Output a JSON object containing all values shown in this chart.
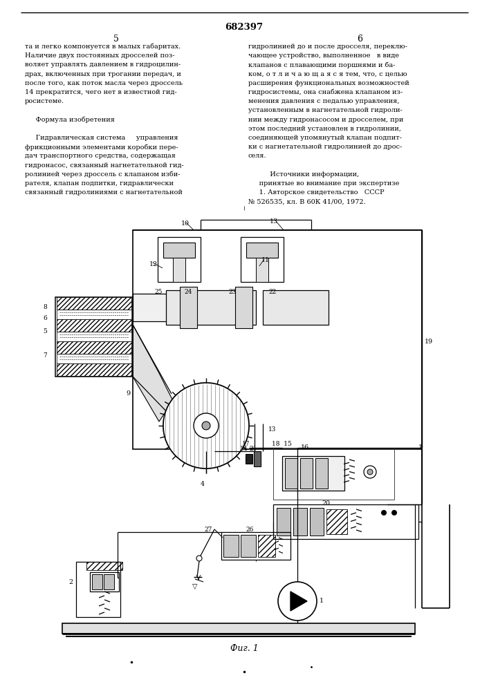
{
  "page_width": 7.07,
  "page_height": 10.0,
  "bg_color": "#ffffff",
  "line_color": "#000000",
  "patent_number": "682397",
  "col_left": "5",
  "col_right": "6",
  "fig_label": "Фиг. 1",
  "header_text_left": [
    "та и легко компонуется в малых габаритах.",
    "Наличие двух постоянных дросселей поз-",
    "воляет управлять давлением в гидроцилин-",
    "драх, включенных при трогании передач, и",
    "после того, как поток масла через дроссель",
    "14 прекратится, чего нет в известной гид-",
    "росистеме.",
    "",
    "     Формула изобретения",
    "",
    "     Гидравлическая система     управления",
    "фрикционными элементами коробки пере-",
    "дач транспортного средства, содержащая",
    "гидронасос, связанный нагнетательной гид-",
    "ролинией через дроссель с клапаном изби-",
    "рателя, клапан подпитки, гидравлически",
    "связанный гидролиниями с нагнетательной"
  ],
  "header_text_right": [
    "гидролинией до и после дросселя, переклю-",
    "чающее устройство, выполненное   в виде",
    "клапанов с плавающими поршнями и ба-",
    "ком, о т л и ч а ю щ а я с я тем, что, с целью",
    "расширения функциональных возможностей",
    "гидросистемы, она снабжена клапаном из-",
    "менения давления с педалью управления,",
    "установленным в нагнетательной гидроли-",
    "нии между гидронасосом и дросселем, при",
    "этом последний установлен в гидролинии,",
    "соединяющей упомянутый клапан подпит-",
    "ки с нагнетательной гидролинией до дрос-",
    "селя.",
    "",
    "          Источники информации,",
    "     принятые во внимание при экспертизе",
    "     1. Авторское свидетельство   СССР",
    "№ 526535, кл. В 60К 41/00, 1972."
  ]
}
